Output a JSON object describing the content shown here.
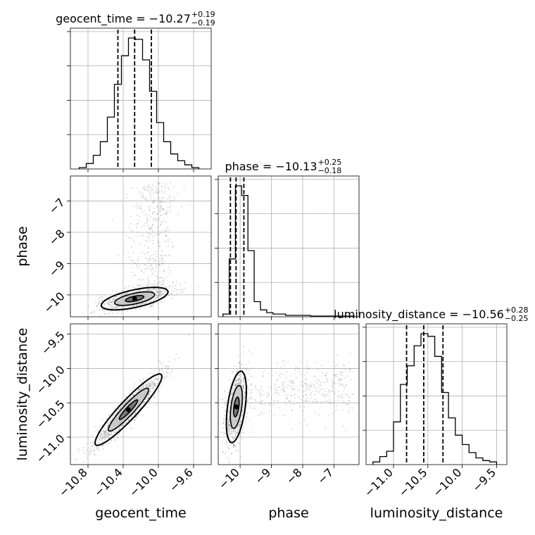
{
  "chart_data": {
    "type": "corner",
    "parameters": [
      "geocent_time",
      "phase",
      "luminosity_distance"
    ],
    "axis_labels": [
      "geocent_time",
      "phase",
      "luminosity_distance"
    ],
    "ranges": {
      "geocent_time": [
        -11.0,
        -9.4
      ],
      "phase": [
        -10.7,
        -6.2
      ],
      "luminosity_distance": [
        -11.4,
        -9.35
      ]
    },
    "ticks": {
      "geocent_time": [
        -10.8,
        -10.4,
        -10.0,
        -9.6
      ],
      "phase": [
        -10,
        -9,
        -8,
        -7
      ],
      "luminosity_distance": [
        -11.0,
        -10.5,
        -10.0,
        -9.5
      ]
    },
    "tick_labels": {
      "geocent_time": [
        "−10.8",
        "−10.4",
        "−10.0",
        "−9.6"
      ],
      "phase": [
        "−10",
        "−9",
        "−8",
        "−7"
      ],
      "luminosity_distance": [
        "−11.0",
        "−10.5",
        "−10.0",
        "−9.5"
      ]
    },
    "titles": [
      {
        "param": "geocent_time",
        "label": "geocent_time = −10.27",
        "plus": "+0.19",
        "minus": "−0.19"
      },
      {
        "param": "phase",
        "label": "phase = −10.13",
        "plus": "+0.25",
        "minus": "−0.18"
      },
      {
        "param": "luminosity_distance",
        "label": "luminosity_distance = −10.56",
        "plus": "+0.28",
        "minus": "−0.25"
      }
    ],
    "quantiles": {
      "geocent_time": [
        -10.46,
        -10.27,
        -10.08
      ],
      "phase": [
        -10.31,
        -10.13,
        -9.88
      ],
      "luminosity_distance": [
        -10.81,
        -10.56,
        -10.28
      ]
    },
    "histograms": {
      "geocent_time": {
        "edges": [
          -10.9,
          -10.82,
          -10.74,
          -10.66,
          -10.58,
          -10.5,
          -10.42,
          -10.34,
          -10.26,
          -10.18,
          -10.1,
          -10.02,
          -9.94,
          -9.86,
          -9.78,
          -9.7,
          -9.62,
          -9.54
        ],
        "counts": [
          0.01,
          0.04,
          0.1,
          0.2,
          0.38,
          0.62,
          0.83,
          0.96,
          0.95,
          0.8,
          0.57,
          0.34,
          0.2,
          0.11,
          0.06,
          0.03,
          0.01
        ]
      },
      "phase": {
        "edges": [
          -10.55,
          -10.35,
          -10.15,
          -9.95,
          -9.75,
          -9.55,
          -9.35,
          -9.15,
          -8.95,
          -8.75,
          -8.55,
          -8.35,
          -8.15,
          -7.95,
          -7.75,
          -7.55,
          -7.35,
          -7.15,
          -6.95,
          -6.75,
          -6.55,
          -6.35
        ],
        "counts": [
          0.02,
          0.42,
          0.95,
          0.88,
          0.48,
          0.11,
          0.05,
          0.03,
          0.02,
          0.02,
          0.01,
          0.01,
          0.01,
          0.01,
          0.005,
          0.005,
          0.005,
          0.005,
          0.005,
          0.005,
          0.005
        ]
      },
      "luminosity_distance": {
        "edges": [
          -11.3,
          -11.2,
          -11.1,
          -11.0,
          -10.9,
          -10.8,
          -10.7,
          -10.6,
          -10.5,
          -10.4,
          -10.3,
          -10.2,
          -10.1,
          -10.0,
          -9.9,
          -9.8,
          -9.7,
          -9.6,
          -9.5
        ],
        "counts": [
          0.02,
          0.06,
          0.1,
          0.32,
          0.6,
          0.74,
          0.89,
          0.98,
          0.96,
          0.81,
          0.54,
          0.35,
          0.22,
          0.15,
          0.09,
          0.05,
          0.03,
          0.02
        ]
      }
    },
    "pairs": [
      {
        "x": "geocent_time",
        "y": "phase",
        "center": [
          -10.27,
          -10.12
        ],
        "sigma": [
          0.19,
          0.18
        ],
        "rho": 0.6
      },
      {
        "x": "geocent_time",
        "y": "luminosity_distance",
        "center": [
          -10.34,
          -10.6
        ],
        "sigma": [
          0.19,
          0.26
        ],
        "rho": 0.93
      },
      {
        "x": "phase",
        "y": "luminosity_distance",
        "center": [
          -10.12,
          -10.56
        ],
        "sigma": [
          0.16,
          0.26
        ],
        "rho": 0.45
      }
    ],
    "colors": {
      "line": "#000000",
      "grid": "#b0b0b0",
      "points": "#7f7f7f"
    }
  }
}
